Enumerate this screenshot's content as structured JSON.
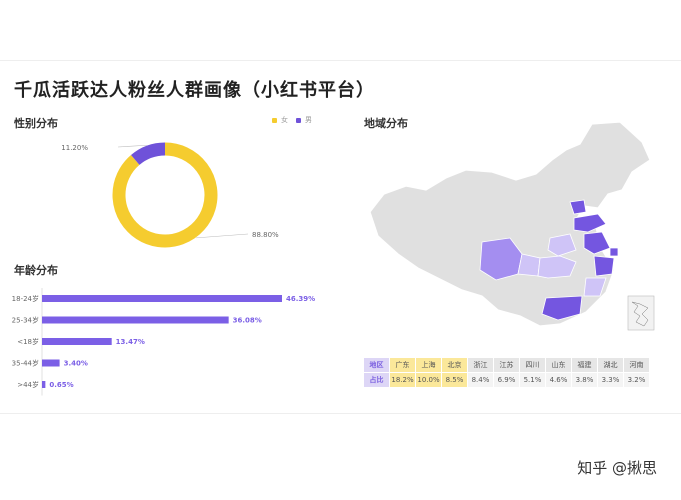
{
  "page": {
    "title": "千瓜活跃达人粉丝人群画像（小红书平台）"
  },
  "sections": {
    "gender": "性别分布",
    "age": "年龄分布",
    "region": "地域分布"
  },
  "gender_legend": [
    {
      "label": "女",
      "color": "#f5cc2f"
    },
    {
      "label": "男",
      "color": "#6f52d9"
    }
  ],
  "region_table": {
    "row_header": "地区",
    "value_header": "占比",
    "regions": [
      "广东",
      "上海",
      "北京",
      "浙江",
      "江苏",
      "四川",
      "山东",
      "福建",
      "湖北",
      "河南"
    ],
    "values": [
      "18.2%",
      "10.0%",
      "8.5%",
      "8.4%",
      "6.9%",
      "5.1%",
      "4.6%",
      "3.8%",
      "3.3%",
      "3.2%"
    ],
    "highlight_count": 3
  },
  "footer": {
    "text": "知乎 @揪思"
  },
  "colors": {
    "female": "#f5cc2f",
    "male": "#6f52d9",
    "bar": "#7b5fe6",
    "map_gray": "#e0e0e0",
    "map_dark": "#7456e0",
    "map_mid": "#a48ef0",
    "map_light": "#cfc4f7"
  },
  "chart_data": [
    {
      "type": "pie",
      "title": "性别分布",
      "categories": [
        "女",
        "男"
      ],
      "values": [
        88.8,
        11.2
      ],
      "labels": [
        "88.80%",
        "11.20%"
      ],
      "donut": true
    },
    {
      "type": "bar",
      "orientation": "horizontal",
      "title": "年龄分布",
      "categories": [
        "18-24岁",
        "25-34岁",
        "<18岁",
        "35-44岁",
        ">44岁"
      ],
      "values": [
        46.39,
        36.08,
        13.47,
        3.4,
        0.65
      ],
      "labels": [
        "46.39%",
        "36.08%",
        "13.47%",
        "3.40%",
        "0.65%"
      ]
    },
    {
      "type": "table",
      "title": "地域分布",
      "categories": [
        "广东",
        "上海",
        "北京",
        "浙江",
        "江苏",
        "四川",
        "山东",
        "福建",
        "湖北",
        "河南"
      ],
      "values": [
        18.2,
        10.0,
        8.5,
        8.4,
        6.9,
        5.1,
        4.6,
        3.8,
        3.3,
        3.2
      ]
    }
  ]
}
